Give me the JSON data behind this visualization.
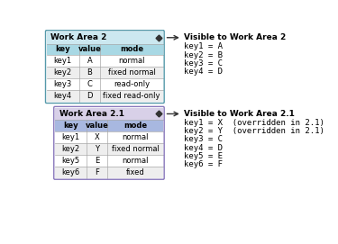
{
  "wa2_title": "Work Area 2",
  "wa2_headers": [
    "key",
    "value",
    "mode"
  ],
  "wa2_rows": [
    [
      "key1",
      "A",
      "normal"
    ],
    [
      "key2",
      "B",
      "fixed normal"
    ],
    [
      "key3",
      "C",
      "read-only"
    ],
    [
      "key4",
      "D",
      "fixed read-only"
    ]
  ],
  "wa21_title": "Work Area 2.1",
  "wa21_headers": [
    "key",
    "value",
    "mode"
  ],
  "wa21_rows": [
    [
      "key1",
      "X",
      "normal"
    ],
    [
      "key2",
      "Y",
      "fixed normal"
    ],
    [
      "key5",
      "E",
      "normal"
    ],
    [
      "key6",
      "F",
      "fixed"
    ]
  ],
  "visible_wa2_title": "Visible to Work Area 2",
  "visible_wa2_items": [
    "key1 = A",
    "key2 = B",
    "key3 = C",
    "key4 = D"
  ],
  "visible_wa21_title": "Visible to Work Area 2.1",
  "visible_wa21_items": [
    "key1 = X  (overridden in 2.1)",
    "key2 = Y  (overridden in 2.1)",
    "key3 = C",
    "key4 = D",
    "key5 = E",
    "key6 = F"
  ],
  "wa2_title_bg": "#cce8f0",
  "wa2_header_bg": "#a8d8e4",
  "wa21_title_bg": "#d8d0e8",
  "wa21_header_bg": "#a8b8e0",
  "row_bg_white": "#ffffff",
  "row_bg_gray": "#eeeeee",
  "border_color": "#aaaaaa",
  "wa2_outer_border": "#5599aa",
  "wa21_outer_border": "#8877bb",
  "arrow_color": "#333333",
  "line_color": "#888888"
}
